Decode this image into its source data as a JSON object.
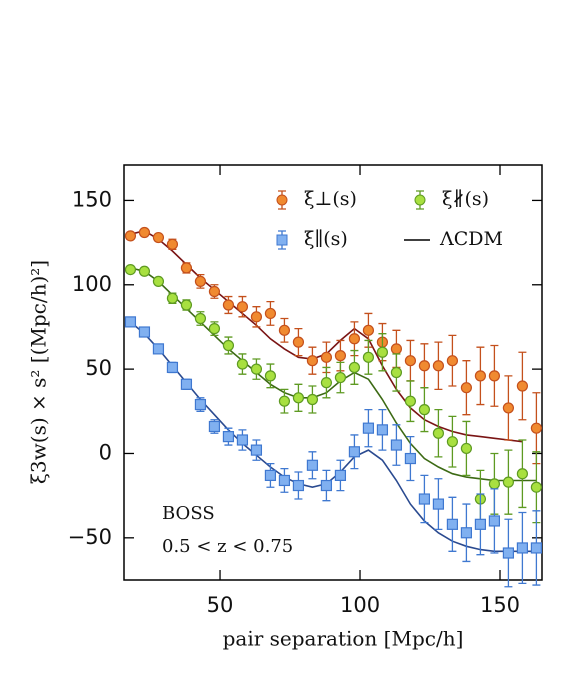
{
  "chart_data": {
    "type": "errorbar",
    "xlabel": "pair separation [Mpc/h]",
    "ylabel": "ξ3w(s) × s² [(Mpc/h)²]",
    "annotations": [
      "BOSS",
      "0.5 < z < 0.75"
    ],
    "xlim": [
      15.7,
      165
    ],
    "ylim": [
      -75,
      171
    ],
    "xticks": [
      50,
      100,
      150
    ],
    "yticks": [
      {
        "value": -50,
        "label": "−50"
      },
      0,
      50,
      100,
      150
    ],
    "x": [
      18,
      23,
      28,
      33,
      38,
      43,
      48,
      53,
      58,
      63,
      68,
      73,
      78,
      83,
      88,
      93,
      98,
      103,
      108,
      113,
      118,
      123,
      128,
      133,
      138,
      143,
      148,
      153,
      158,
      163
    ],
    "series": [
      {
        "name": "ξ⊥(s)",
        "color": "#f08a30",
        "edge": "#c4501c",
        "marker": "circle",
        "values": [
          129,
          131,
          128,
          124,
          110,
          102,
          96,
          88,
          87,
          81,
          83,
          73,
          66,
          55,
          57,
          58,
          68,
          73,
          66,
          62,
          55,
          52,
          52,
          55,
          39,
          46,
          46,
          27,
          40,
          15
        ],
        "errors": [
          2,
          2,
          2,
          3,
          3,
          4,
          4,
          5,
          6,
          6,
          7,
          7,
          8,
          8,
          9,
          9,
          10,
          10,
          11,
          11,
          12,
          13,
          14,
          15,
          16,
          17,
          18,
          19,
          20,
          21
        ]
      },
      {
        "name": "ξ∦(s)",
        "color": "#a8e040",
        "edge": "#5e9a22",
        "marker": "circle",
        "values": [
          109,
          108,
          102,
          92,
          88,
          80,
          74,
          64,
          53,
          50,
          46,
          31,
          33,
          32,
          42,
          45,
          51,
          57,
          60,
          48,
          31,
          26,
          12,
          7,
          3,
          -27,
          -18,
          -17,
          -12,
          -20
        ],
        "errors": [
          2,
          2,
          2,
          3,
          3,
          4,
          4,
          5,
          6,
          6,
          7,
          7,
          8,
          8,
          9,
          9,
          10,
          10,
          11,
          11,
          12,
          13,
          14,
          15,
          16,
          17,
          18,
          19,
          20,
          21
        ]
      },
      {
        "name": "ξ∥(s)",
        "color": "#80b0f0",
        "edge": "#3f78d0",
        "marker": "square",
        "values": [
          78,
          72,
          62,
          51,
          41,
          29,
          16,
          10,
          8,
          2,
          -13,
          -16,
          -19,
          -7,
          -19,
          -13,
          1,
          15,
          14,
          5,
          -3,
          -27,
          -30,
          -42,
          -47,
          -42,
          -40,
          -59,
          -56,
          -56
        ],
        "errors": [
          2,
          2,
          2,
          3,
          3,
          4,
          4,
          5,
          6,
          6,
          7,
          7,
          8,
          8,
          9,
          9,
          10,
          11,
          12,
          12,
          13,
          14,
          15,
          16,
          17,
          18,
          19,
          20,
          21,
          22
        ]
      }
    ],
    "model": {
      "name": "ΛCDM",
      "color": "#000000",
      "x": [
        18,
        23,
        28,
        33,
        38,
        43,
        48,
        53,
        58,
        63,
        68,
        73,
        78,
        83,
        88,
        93,
        98,
        103,
        108,
        113,
        118,
        123,
        128,
        133,
        138,
        143,
        148,
        153,
        158,
        163
      ],
      "lines": [
        {
          "color": "#7a1414",
          "values": [
            130,
            132,
            127,
            120,
            112,
            104,
            97,
            90,
            83,
            76,
            68,
            62,
            57,
            56,
            59,
            67,
            74,
            68,
            52,
            38,
            27,
            20,
            16,
            13,
            11,
            10,
            9,
            8,
            7,
            null
          ]
        },
        {
          "color": "#3c6a14",
          "values": [
            110,
            108,
            102,
            94,
            86,
            78,
            70,
            62,
            55,
            48,
            41,
            36,
            33,
            33,
            36,
            43,
            48,
            44,
            32,
            18,
            6,
            -3,
            -8,
            -12,
            -14,
            -15,
            -16,
            -16,
            -16,
            -16
          ]
        },
        {
          "color": "#2a4a90",
          "values": [
            78,
            71,
            62,
            52,
            42,
            32,
            23,
            14,
            6,
            -1,
            -8,
            -14,
            -18,
            -20,
            -18,
            -11,
            -2,
            2,
            -4,
            -16,
            -30,
            -40,
            -47,
            -52,
            -55,
            -57,
            -58,
            -58,
            -58,
            -58
          ]
        }
      ]
    }
  }
}
